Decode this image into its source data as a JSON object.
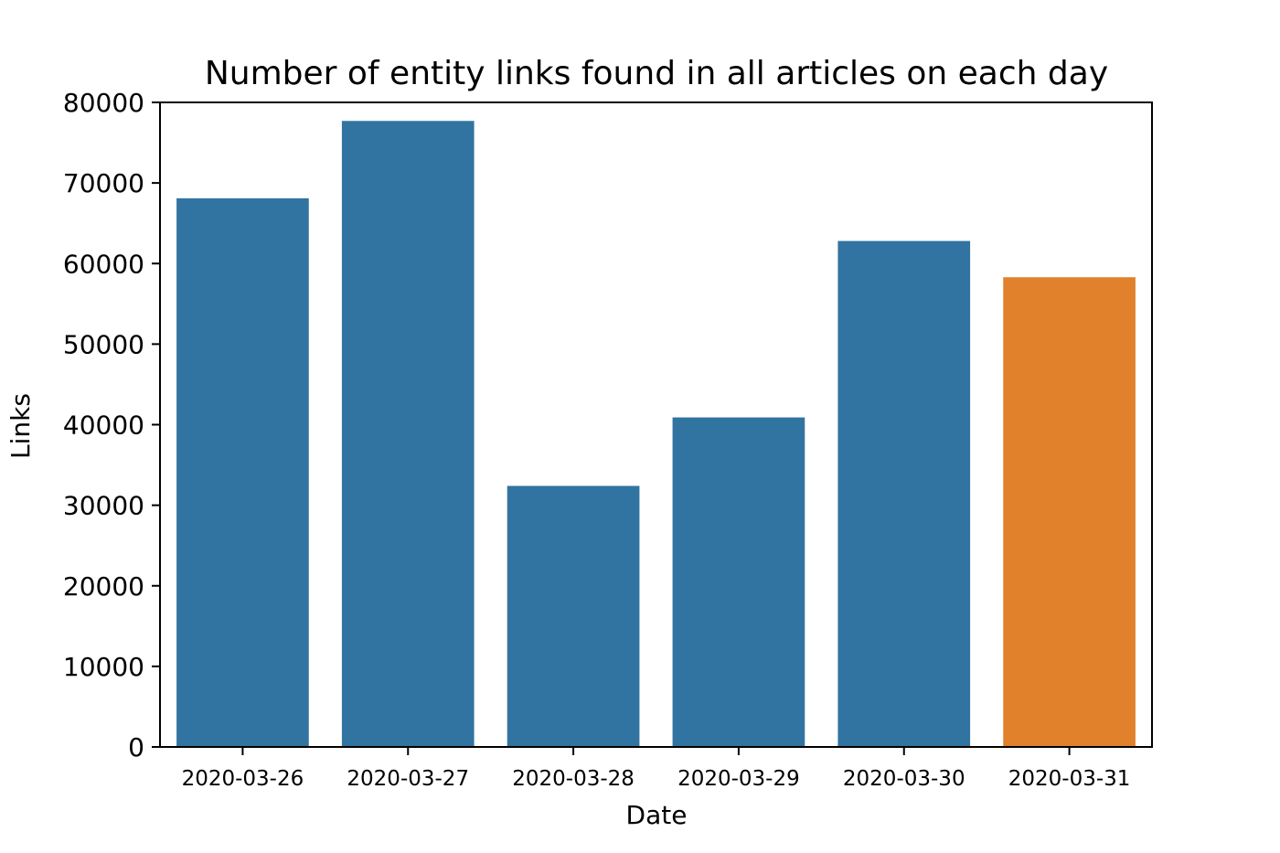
{
  "chart_data": {
    "type": "bar",
    "title": "Number of entity links found in all articles on each day",
    "xlabel": "Date",
    "ylabel": "Links",
    "categories": [
      "2020-03-26",
      "2020-03-27",
      "2020-03-28",
      "2020-03-29",
      "2020-03-30",
      "2020-03-31"
    ],
    "values": [
      68100,
      77700,
      32400,
      40900,
      62800,
      58300
    ],
    "bar_colors": [
      "#3274a1",
      "#3274a1",
      "#3274a1",
      "#3274a1",
      "#3274a1",
      "#e1812c"
    ],
    "ylim": [
      0,
      80000
    ],
    "yticks": [
      "0",
      "10000",
      "20000",
      "30000",
      "40000",
      "50000",
      "60000",
      "70000",
      "80000"
    ],
    "grid": false,
    "legend": "none"
  }
}
